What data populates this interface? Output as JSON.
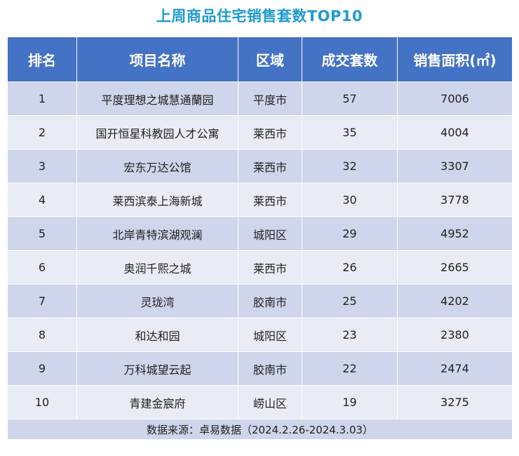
{
  "title": "上周商品住宅销售套数TOP10",
  "table": {
    "headers": [
      "排名",
      "项目名称",
      "区域",
      "成交套数",
      "销售面积(㎡)"
    ],
    "rows": [
      {
        "rank": "1",
        "project": "平度理想之城慧通蘭园",
        "district": "平度市",
        "units": "57",
        "area": "7006"
      },
      {
        "rank": "2",
        "project": "国开恒星科教园人才公寓",
        "district": "莱西市",
        "units": "35",
        "area": "4004"
      },
      {
        "rank": "3",
        "project": "宏东万达公馆",
        "district": "莱西市",
        "units": "32",
        "area": "3307"
      },
      {
        "rank": "4",
        "project": "莱西滨泰上海新城",
        "district": "莱西市",
        "units": "30",
        "area": "3778"
      },
      {
        "rank": "5",
        "project": "北岸青特滨湖观澜",
        "district": "城阳区",
        "units": "29",
        "area": "4952"
      },
      {
        "rank": "6",
        "project": "奥润千熙之城",
        "district": "莱西市",
        "units": "26",
        "area": "2665"
      },
      {
        "rank": "7",
        "project": "灵珑湾",
        "district": "胶南市",
        "units": "25",
        "area": "4202"
      },
      {
        "rank": "8",
        "project": "和达和园",
        "district": "城阳区",
        "units": "23",
        "area": "2380"
      },
      {
        "rank": "9",
        "project": "万科城望云起",
        "district": "胶南市",
        "units": "22",
        "area": "2474"
      },
      {
        "rank": "10",
        "project": "青建金宸府",
        "district": "崂山区",
        "units": "19",
        "area": "3275"
      }
    ],
    "footer": "数据来源：卓易数据（2024.2.26-2024.3.03）"
  },
  "colors": {
    "title": "#1f9bd1",
    "header_bg": "#4472c4",
    "row_odd_bg": "#cfd5ea",
    "row_even_bg": "#e9ebf5"
  }
}
